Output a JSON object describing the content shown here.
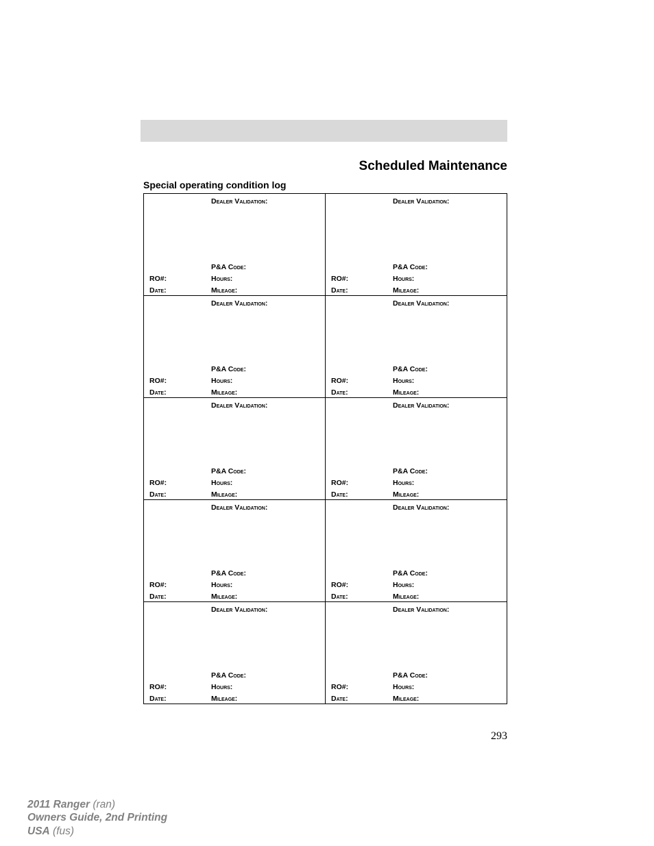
{
  "page": {
    "title": "Scheduled Maintenance",
    "section_title": "Special operating condition log",
    "page_number": "293"
  },
  "log": {
    "labels": {
      "dealer_validation": "Dealer Validation:",
      "pa_code": "P&A Code:",
      "ro": "RO#:",
      "hours": "Hours:",
      "date": "Date:",
      "mileage": "Mileage:"
    },
    "row_count": 5,
    "col_count": 2
  },
  "footer": {
    "line1_bold": "2011 Ranger",
    "line1_italic": " (ran)",
    "line2": "Owners Guide, 2nd Printing",
    "line3_bold": "USA",
    "line3_italic": " (fus)"
  },
  "colors": {
    "gray_bar": "#d9d9d9",
    "text": "#000000",
    "footer_text": "#808080",
    "background": "#ffffff"
  }
}
